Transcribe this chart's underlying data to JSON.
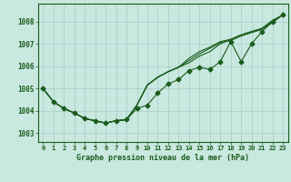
{
  "title": "Graphe pression niveau de la mer (hPa)",
  "bg_color": "#c8e8e0",
  "grid_color": "#a8ccc4",
  "line_color": "#1a5c1a",
  "x_values": [
    0,
    1,
    2,
    3,
    4,
    5,
    6,
    7,
    8,
    9,
    10,
    11,
    12,
    13,
    14,
    15,
    16,
    17,
    18,
    19,
    20,
    21,
    22,
    23
  ],
  "series_main": [
    1005.0,
    1004.4,
    1004.1,
    1003.9,
    1003.65,
    1003.55,
    1003.45,
    1003.55,
    1003.6,
    1004.1,
    1004.25,
    1004.8,
    1005.2,
    1005.4,
    1005.8,
    1005.95,
    1005.85,
    1006.2,
    1007.1,
    1006.2,
    1007.0,
    1007.55,
    1008.0,
    1008.3
  ],
  "series_b": [
    1005.0,
    1004.4,
    1004.1,
    1003.9,
    1003.65,
    1003.55,
    1003.45,
    1003.55,
    1003.6,
    1004.25,
    1005.15,
    1005.5,
    1005.75,
    1005.95,
    1006.15,
    1006.45,
    1006.65,
    1007.0,
    1007.2,
    1007.4,
    1007.55,
    1007.65,
    1007.95,
    1008.3
  ],
  "series_c": [
    1005.0,
    1004.4,
    1004.1,
    1003.9,
    1003.65,
    1003.55,
    1003.45,
    1003.55,
    1003.6,
    1004.25,
    1005.15,
    1005.5,
    1005.75,
    1005.95,
    1006.25,
    1006.55,
    1006.8,
    1007.05,
    1007.15,
    1007.35,
    1007.5,
    1007.65,
    1008.0,
    1008.3
  ],
  "series_d": [
    1005.0,
    1004.4,
    1004.1,
    1003.9,
    1003.65,
    1003.55,
    1003.45,
    1003.55,
    1003.6,
    1004.25,
    1005.15,
    1005.5,
    1005.75,
    1005.95,
    1006.35,
    1006.65,
    1006.85,
    1007.1,
    1007.2,
    1007.4,
    1007.55,
    1007.7,
    1008.05,
    1008.3
  ],
  "ylim": [
    1002.6,
    1008.8
  ],
  "yticks": [
    1003,
    1004,
    1005,
    1006,
    1007,
    1008
  ]
}
